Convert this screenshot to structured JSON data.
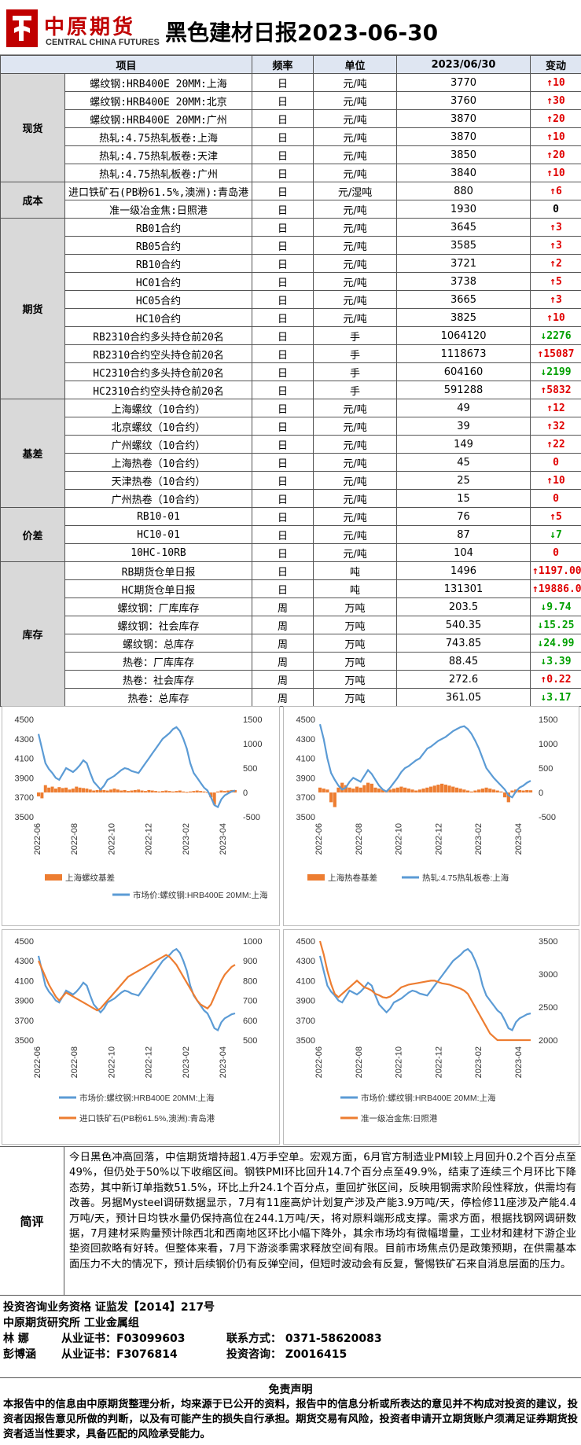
{
  "header": {
    "logo_cn": "中原期货",
    "logo_en": "CENTRAL CHINA FUTURES",
    "title": "黑色建材日报2023-06-30"
  },
  "table": {
    "headers": [
      "项目",
      "频率",
      "单位",
      "2023/06/30",
      "变动"
    ],
    "groups": [
      {
        "category": "现货",
        "rows": [
          {
            "item": "螺纹钢:HRB400E 20MM:上海",
            "freq": "日",
            "unit": "元/吨",
            "value": "3770",
            "dir": "up",
            "change": "10"
          },
          {
            "item": "螺纹钢:HRB400E 20MM:北京",
            "freq": "日",
            "unit": "元/吨",
            "value": "3760",
            "dir": "up",
            "change": "30"
          },
          {
            "item": "螺纹钢:HRB400E 20MM:广州",
            "freq": "日",
            "unit": "元/吨",
            "value": "3870",
            "dir": "up",
            "change": "20"
          },
          {
            "item": "热轧:4.75热轧板卷:上海",
            "freq": "日",
            "unit": "元/吨",
            "value": "3870",
            "dir": "up",
            "change": "10"
          },
          {
            "item": "热轧:4.75热轧板卷:天津",
            "freq": "日",
            "unit": "元/吨",
            "value": "3850",
            "dir": "up",
            "change": "20"
          },
          {
            "item": "热轧:4.75热轧板卷:广州",
            "freq": "日",
            "unit": "元/吨",
            "value": "3840",
            "dir": "up",
            "change": "10"
          }
        ]
      },
      {
        "category": "成本",
        "rows": [
          {
            "item": "进口铁矿石(PB粉61.5%,澳洲):青岛港",
            "freq": "日",
            "unit": "元/湿吨",
            "value": "880",
            "dir": "up",
            "change": "6"
          },
          {
            "item": "准一级冶金焦:日照港",
            "freq": "日",
            "unit": "元/吨",
            "value": "1930",
            "dir": "zero",
            "change": "0"
          }
        ]
      },
      {
        "category": "期货",
        "rows": [
          {
            "item": "RB01合约",
            "freq": "日",
            "unit": "元/吨",
            "value": "3645",
            "dir": "up",
            "change": "3"
          },
          {
            "item": "RB05合约",
            "freq": "日",
            "unit": "元/吨",
            "value": "3585",
            "dir": "up",
            "change": "3"
          },
          {
            "item": "RB10合约",
            "freq": "日",
            "unit": "元/吨",
            "value": "3721",
            "dir": "up",
            "change": "2"
          },
          {
            "item": "HC01合约",
            "freq": "日",
            "unit": "元/吨",
            "value": "3738",
            "dir": "up",
            "change": "5"
          },
          {
            "item": "HC05合约",
            "freq": "日",
            "unit": "元/吨",
            "value": "3665",
            "dir": "up",
            "change": "3"
          },
          {
            "item": "HC10合约",
            "freq": "日",
            "unit": "元/吨",
            "value": "3825",
            "dir": "up",
            "change": "10"
          },
          {
            "item": "RB2310合约多头持仓前20名",
            "freq": "日",
            "unit": "手",
            "value": "1064120",
            "dir": "down",
            "change": "2276"
          },
          {
            "item": "RB2310合约空头持仓前20名",
            "freq": "日",
            "unit": "手",
            "value": "1118673",
            "dir": "up",
            "change": "15087"
          },
          {
            "item": "HC2310合约多头持仓前20名",
            "freq": "日",
            "unit": "手",
            "value": "604160",
            "dir": "down",
            "change": "2199"
          },
          {
            "item": "HC2310合约空头持仓前20名",
            "freq": "日",
            "unit": "手",
            "value": "591288",
            "dir": "up",
            "change": "5832"
          }
        ]
      },
      {
        "category": "基差",
        "rows": [
          {
            "item": "上海螺纹（10合约）",
            "freq": "日",
            "unit": "元/吨",
            "value": "49",
            "dir": "up",
            "change": "12"
          },
          {
            "item": "北京螺纹（10合约）",
            "freq": "日",
            "unit": "元/吨",
            "value": "39",
            "dir": "up",
            "change": "32"
          },
          {
            "item": "广州螺纹（10合约）",
            "freq": "日",
            "unit": "元/吨",
            "value": "149",
            "dir": "up",
            "change": "22"
          },
          {
            "item": "上海热卷（10合约）",
            "freq": "日",
            "unit": "元/吨",
            "value": "45",
            "dir": "zero-red",
            "change": "0"
          },
          {
            "item": "天津热卷（10合约）",
            "freq": "日",
            "unit": "元/吨",
            "value": "25",
            "dir": "up",
            "change": "10"
          },
          {
            "item": "广州热卷（10合约）",
            "freq": "日",
            "unit": "元/吨",
            "value": "15",
            "dir": "zero-red",
            "change": "0"
          }
        ]
      },
      {
        "category": "价差",
        "rows": [
          {
            "item": "RB10-01",
            "freq": "日",
            "unit": "元/吨",
            "value": "76",
            "dir": "up",
            "change": "5"
          },
          {
            "item": "HC10-01",
            "freq": "日",
            "unit": "元/吨",
            "value": "87",
            "dir": "down",
            "change": "7"
          },
          {
            "item": "10HC-10RB",
            "freq": "日",
            "unit": "元/吨",
            "value": "104",
            "dir": "zero-red",
            "change": "0"
          }
        ]
      },
      {
        "category": "库存",
        "rows": [
          {
            "item": "RB期货仓单日报",
            "freq": "日",
            "unit": "吨",
            "value": "1496",
            "dir": "up",
            "change": "1197.00"
          },
          {
            "item": "HC期货仓单日报",
            "freq": "日",
            "unit": "吨",
            "value": "131301",
            "dir": "up",
            "change": "19886.00"
          },
          {
            "item": "螺纹钢：厂库库存",
            "freq": "周",
            "unit": "万吨",
            "value": "203.5",
            "dir": "down",
            "change": "9.74"
          },
          {
            "item": "螺纹钢：社会库存",
            "freq": "周",
            "unit": "万吨",
            "value": "540.35",
            "dir": "down",
            "change": "15.25"
          },
          {
            "item": "螺纹钢：总库存",
            "freq": "周",
            "unit": "万吨",
            "value": "743.85",
            "dir": "down",
            "change": "24.99"
          },
          {
            "item": "热卷：厂库库存",
            "freq": "周",
            "unit": "万吨",
            "value": "88.45",
            "dir": "down",
            "change": "3.39"
          },
          {
            "item": "热卷：社会库存",
            "freq": "周",
            "unit": "万吨",
            "value": "272.6",
            "dir": "up",
            "change": "0.22"
          },
          {
            "item": "热卷：总库存",
            "freq": "周",
            "unit": "万吨",
            "value": "361.05",
            "dir": "down",
            "change": "3.17"
          }
        ]
      }
    ]
  },
  "chart_data": [
    {
      "type": "line",
      "x_ticks": [
        "2022-06",
        "2022-08",
        "2022-10",
        "2022-12",
        "2023-02",
        "2023-04"
      ],
      "left_axis": {
        "ticks": [
          "4500",
          "4300",
          "4100",
          "3900",
          "3700",
          "3500"
        ],
        "range": [
          3500,
          4500
        ]
      },
      "right_axis": {
        "ticks": [
          "1500",
          "1000",
          "500",
          "0",
          "-500"
        ],
        "range": [
          -500,
          1500
        ]
      },
      "series": [
        {
          "name": "上海螺纹基差",
          "kind": "bar",
          "axis": "right",
          "color": "#ed7d31"
        },
        {
          "name": "市场价:螺纹钢:HRB400E 20MM:上海",
          "kind": "line",
          "axis": "left",
          "color": "#5b9bd5"
        }
      ],
      "line_values": [
        4350,
        4200,
        4050,
        3990,
        3950,
        3900,
        3880,
        3940,
        4000,
        3980,
        3960,
        3990,
        4030,
        4080,
        4050,
        3950,
        3860,
        3820,
        3780,
        3820,
        3880,
        3900,
        3920,
        3950,
        3980,
        4000,
        3990,
        3970,
        3960,
        3950,
        4000,
        4050,
        4100,
        4150,
        4200,
        4250,
        4300,
        4330,
        4360,
        4400,
        4420,
        4380,
        4300,
        4200,
        4050,
        3950,
        3900,
        3850,
        3800,
        3770,
        3700,
        3620,
        3600,
        3680,
        3720,
        3740,
        3760,
        3770
      ],
      "bar_values": [
        -80,
        -120,
        150,
        100,
        120,
        80,
        110,
        90,
        100,
        60,
        80,
        120,
        100,
        90,
        80,
        60,
        40,
        50,
        60,
        50,
        40,
        60,
        80,
        60,
        40,
        50,
        30,
        40,
        50,
        60,
        40,
        30,
        50,
        40,
        30,
        20,
        30,
        40,
        30,
        20,
        30,
        40,
        20,
        10,
        20,
        30,
        40,
        30,
        20,
        10,
        -100,
        -250,
        20,
        40,
        30,
        40,
        50,
        49
      ]
    },
    {
      "type": "line",
      "x_ticks": [
        "2022-06",
        "2022-08",
        "2022-10",
        "2022-12",
        "2023-02",
        "2023-04"
      ],
      "left_axis": {
        "ticks": [
          "4500",
          "4300",
          "4100",
          "3900",
          "3700",
          "3500"
        ],
        "range": [
          3500,
          4500
        ]
      },
      "right_axis": {
        "ticks": [
          "1500",
          "1000",
          "500",
          "0",
          "-500"
        ],
        "range": [
          -500,
          1500
        ]
      },
      "series": [
        {
          "name": "上海热卷基差",
          "kind": "bar",
          "axis": "right",
          "color": "#ed7d31"
        },
        {
          "name": "热轧:4.75热轧板卷:上海",
          "kind": "line",
          "axis": "left",
          "color": "#5b9bd5"
        }
      ],
      "line_values": [
        4450,
        4300,
        4100,
        3950,
        3880,
        3820,
        3780,
        3800,
        3860,
        3900,
        3880,
        3860,
        3920,
        3980,
        3940,
        3880,
        3820,
        3780,
        3760,
        3800,
        3850,
        3900,
        3960,
        4000,
        4020,
        4050,
        4080,
        4100,
        4150,
        4200,
        4220,
        4250,
        4280,
        4300,
        4320,
        4350,
        4380,
        4400,
        4420,
        4430,
        4400,
        4350,
        4280,
        4200,
        4100,
        4000,
        3950,
        3900,
        3860,
        3820,
        3780,
        3720,
        3700,
        3760,
        3800,
        3820,
        3850,
        3870
      ],
      "bar_values": [
        100,
        80,
        60,
        -200,
        -300,
        100,
        200,
        150,
        100,
        80,
        120,
        100,
        150,
        200,
        180,
        100,
        80,
        60,
        40,
        60,
        80,
        100,
        120,
        100,
        80,
        60,
        40,
        60,
        80,
        100,
        120,
        140,
        160,
        180,
        160,
        140,
        120,
        100,
        80,
        60,
        40,
        20,
        40,
        60,
        80,
        100,
        80,
        60,
        40,
        20,
        -100,
        -200,
        40,
        60,
        50,
        40,
        50,
        45
      ]
    },
    {
      "type": "line",
      "x_ticks": [
        "2022-06",
        "2022-08",
        "2022-10",
        "2022-12",
        "2023-02",
        "2023-04"
      ],
      "left_axis": {
        "ticks": [
          "4500",
          "4300",
          "4100",
          "3900",
          "3700",
          "3500"
        ],
        "range": [
          3500,
          4500
        ]
      },
      "right_axis": {
        "ticks": [
          "1000",
          "900",
          "800",
          "700",
          "600",
          "500"
        ],
        "range": [
          500,
          1000
        ]
      },
      "series": [
        {
          "name": "市场价:螺纹钢:HRB400E 20MM:上海",
          "kind": "line",
          "axis": "left",
          "color": "#5b9bd5"
        },
        {
          "name": "进口铁矿石(PB粉61.5%,澳洲):青岛港",
          "kind": "line",
          "axis": "right",
          "color": "#ed7d31"
        }
      ],
      "line_values": [
        4350,
        4200,
        4050,
        3990,
        3950,
        3900,
        3880,
        3940,
        4000,
        3980,
        3960,
        3990,
        4030,
        4080,
        4050,
        3950,
        3860,
        3820,
        3780,
        3820,
        3880,
        3900,
        3920,
        3950,
        3980,
        4000,
        3990,
        3970,
        3960,
        3950,
        4000,
        4050,
        4100,
        4150,
        4200,
        4250,
        4300,
        4330,
        4360,
        4400,
        4420,
        4380,
        4300,
        4200,
        4050,
        3950,
        3900,
        3850,
        3800,
        3770,
        3700,
        3620,
        3600,
        3680,
        3720,
        3740,
        3760,
        3770
      ],
      "line2_values": [
        900,
        860,
        820,
        780,
        750,
        720,
        700,
        720,
        740,
        730,
        720,
        710,
        700,
        690,
        680,
        670,
        660,
        650,
        660,
        680,
        700,
        720,
        740,
        760,
        780,
        800,
        820,
        830,
        840,
        850,
        860,
        870,
        880,
        890,
        900,
        910,
        920,
        930,
        920,
        900,
        880,
        850,
        820,
        790,
        760,
        730,
        700,
        680,
        670,
        660,
        680,
        720,
        760,
        800,
        830,
        850,
        870,
        880
      ]
    },
    {
      "type": "line",
      "x_ticks": [
        "2022-06",
        "2022-08",
        "2022-10",
        "2022-12",
        "2023-02",
        "2023-04"
      ],
      "left_axis": {
        "ticks": [
          "4500",
          "4300",
          "4100",
          "3900",
          "3700",
          "3500"
        ],
        "range": [
          3500,
          4500
        ]
      },
      "right_axis": {
        "ticks": [
          "3500",
          "3000",
          "2500",
          "2000"
        ],
        "range": [
          2000,
          3500
        ]
      },
      "series": [
        {
          "name": "市场价:螺纹钢:HRB400E 20MM:上海",
          "kind": "line",
          "axis": "left",
          "color": "#5b9bd5"
        },
        {
          "name": "准一级冶金焦:日照港",
          "kind": "line",
          "axis": "right",
          "color": "#ed7d31"
        }
      ],
      "line_values": [
        4350,
        4200,
        4050,
        3990,
        3950,
        3900,
        3880,
        3940,
        4000,
        3980,
        3960,
        3990,
        4030,
        4080,
        4050,
        3950,
        3860,
        3820,
        3780,
        3820,
        3880,
        3900,
        3920,
        3950,
        3980,
        4000,
        3990,
        3970,
        3960,
        3950,
        4000,
        4050,
        4100,
        4150,
        4200,
        4250,
        4300,
        4330,
        4360,
        4400,
        4420,
        4380,
        4300,
        4200,
        4050,
        3950,
        3900,
        3850,
        3800,
        3770,
        3700,
        3620,
        3600,
        3680,
        3720,
        3740,
        3760,
        3770
      ],
      "line2_values": [
        3500,
        3300,
        3050,
        2850,
        2700,
        2650,
        2700,
        2750,
        2800,
        2850,
        2900,
        2850,
        2800,
        2780,
        2750,
        2700,
        2680,
        2650,
        2640,
        2660,
        2700,
        2750,
        2800,
        2820,
        2840,
        2850,
        2860,
        2870,
        2880,
        2890,
        2900,
        2900,
        2880,
        2860,
        2850,
        2840,
        2820,
        2800,
        2780,
        2750,
        2700,
        2600,
        2500,
        2400,
        2300,
        2200,
        2100,
        2050,
        2000,
        2000,
        2000,
        2000,
        2000,
        2000,
        2000,
        2000,
        2000,
        2000
      ]
    }
  ],
  "review": {
    "label": "简评",
    "text": "今日黑色冲高回落，中信期货增持超1.4万手空单。宏观方面，6月官方制造业PMI较上月回升0.2个百分点至49%，但仍处于50%以下收缩区间。钢铁PMI环比回升14.7个百分点至49.9%，结束了连续三个月环比下降态势，其中新订单指数51.5%，环比上升24.1个百分点，重回扩张区间，反映用钢需求阶段性释放，供需均有改善。另据Mysteel调研数据显示，7月有11座高炉计划复产涉及产能3.9万吨/天，停检修11座涉及产能4.4万吨/天，预计日均铁水量仍保持高位在244.1万吨/天，将对原料端形成支撑。需求方面，根据找钢网调研数据，7月建材采购量预计除西北和西南地区环比小幅下降外，其余市场均有微幅增量，工业材和建材下游企业垫资回款略有好转。但整体来看，7月下游淡季需求释放空间有限。目前市场焦点仍是政策预期，在供需基本面压力不大的情况下，预计后续钢价仍有反弹空间，但短时波动会有反复，警惕铁矿石来自消息层面的压力。"
  },
  "qualification": {
    "line1": "投资咨询业务资格   证监发【2014】217号",
    "line2": "中原期货研究所   工业金属组",
    "p1_name": "林  娜",
    "p1_cert": "从业证书：F03099603",
    "p1_contact": "联系方式： 0371-58620083",
    "p2_name": "彭博涵",
    "p2_cert": "从业证书：F3076814",
    "p2_contact": "投资咨询： Z0016415"
  },
  "disclaimer": {
    "title": "免责声明",
    "text": "本报告中的信息由中原期货整理分析，均来源于已公开的资料，报告中的信息分析或所表达的意见并不构成对投资的建议，投资者因报告意见所做的判断，以及有可能产生的损失自行承担。期货交易有风险，投资者申请开立期货账户须满足证券期货投资者适当性要求，具备匹配的风险承受能力。"
  }
}
